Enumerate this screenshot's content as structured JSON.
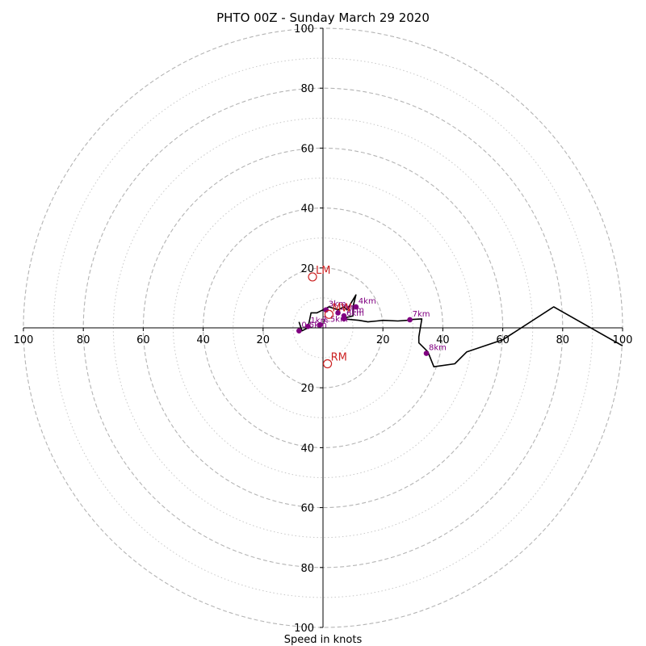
{
  "chart_data": {
    "type": "hodograph",
    "title": "PHTO 00Z - Sunday March 29 2020",
    "xlabel": "Speed in knots",
    "ylabel": "",
    "xlim": [
      -100,
      100
    ],
    "ylim": [
      -100,
      100
    ],
    "major_rings": [
      20,
      40,
      60,
      80,
      100
    ],
    "minor_rings": [
      10,
      30,
      50,
      70,
      90
    ],
    "x_ticks": [
      "100",
      "80",
      "60",
      "40",
      "20",
      "20",
      "40",
      "60",
      "80",
      "100"
    ],
    "y_ticks": [
      "100",
      "80",
      "60",
      "40",
      "20",
      "20",
      "40",
      "60",
      "80",
      "100"
    ],
    "hodograph_line": {
      "color": "#000000",
      "points": [
        [
          -8,
          2
        ],
        [
          -7,
          -1
        ],
        [
          -5,
          0
        ],
        [
          -4,
          5
        ],
        [
          -2,
          5
        ],
        [
          0,
          6
        ],
        [
          2,
          7
        ],
        [
          5,
          6
        ],
        [
          7,
          7
        ],
        [
          8,
          6
        ],
        [
          11,
          11
        ],
        [
          10,
          7
        ],
        [
          10,
          4
        ],
        [
          8,
          3.5
        ],
        [
          7,
          3
        ],
        [
          12,
          2.5
        ],
        [
          15,
          2
        ],
        [
          18,
          2.3
        ],
        [
          20,
          2.5
        ],
        [
          25,
          2.3
        ],
        [
          28,
          2.5
        ],
        [
          30,
          2.8
        ],
        [
          33,
          3
        ],
        [
          32,
          -3
        ],
        [
          32,
          -5
        ],
        [
          35,
          -8
        ],
        [
          37,
          -13
        ],
        [
          44,
          -12
        ],
        [
          48,
          -8
        ],
        [
          60,
          -4
        ],
        [
          77,
          7
        ],
        [
          100,
          -6
        ]
      ]
    },
    "km_markers": {
      "color": "#800080",
      "points": [
        {
          "label": "0.5km",
          "u": -8,
          "v": -1
        },
        {
          "label": "1km",
          "u": -5,
          "v": 0.5
        },
        {
          "label": "1.5km",
          "u": -1,
          "v": 1
        },
        {
          "label": "2km",
          "u": 5,
          "v": 5
        },
        {
          "label": "3km",
          "u": 1,
          "v": 6
        },
        {
          "label": "4km",
          "u": 11,
          "v": 7
        },
        {
          "label": "5km",
          "u": 7,
          "v": 4
        },
        {
          "label": "6km",
          "u": 7,
          "v": 3
        },
        {
          "label": "7km",
          "u": 29,
          "v": 2.7
        },
        {
          "label": "8km",
          "u": 34.5,
          "v": -8.5
        }
      ]
    },
    "storm_motion": {
      "color": "#cc2222",
      "markers": [
        {
          "label": "LM",
          "u": -3.5,
          "v": 17
        },
        {
          "label": "RM",
          "u": 1.5,
          "v": -12
        },
        {
          "label": "MW",
          "u": 2,
          "v": 4.5
        }
      ]
    }
  }
}
